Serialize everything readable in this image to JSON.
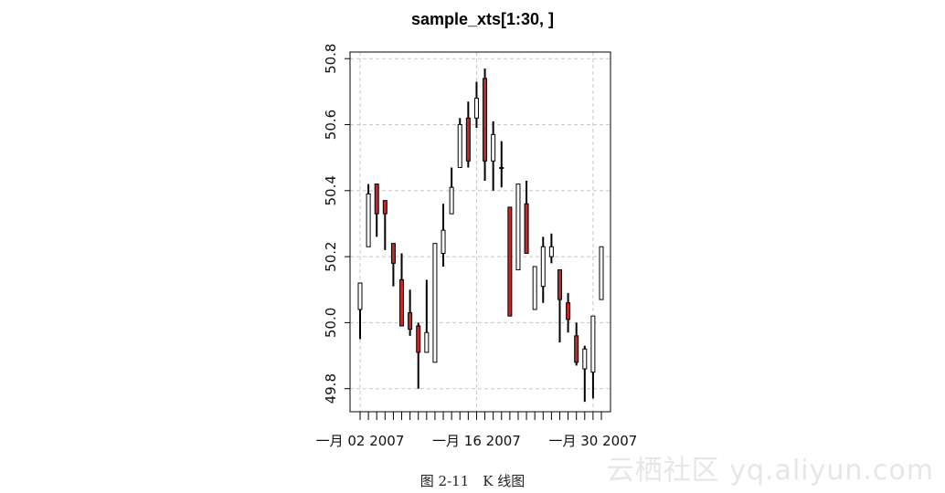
{
  "chart_data": {
    "type": "candlestick",
    "title": "sample_xts[1:30, ]",
    "xlabel": "",
    "ylabel": "",
    "ylim": [
      49.73,
      50.82
    ],
    "y_ticks": [
      49.8,
      50.0,
      50.2,
      50.4,
      50.6,
      50.8
    ],
    "y_tick_labels": [
      "49.8",
      "50.0",
      "50.2",
      "50.4",
      "50.6",
      "50.8"
    ],
    "x_tick_labels": [
      {
        "index": 0,
        "label": "一月 02 2007"
      },
      {
        "index": 14,
        "label": "一月 16 2007"
      },
      {
        "index": 28,
        "label": "一月 30 2007"
      }
    ],
    "grid": true,
    "up_color": "#ffffff",
    "down_color": "#c0282a",
    "candles": [
      {
        "open": 50.04,
        "high": 50.11,
        "low": 49.95,
        "close": 50.12
      },
      {
        "open": 50.23,
        "high": 50.42,
        "low": 50.23,
        "close": 50.39
      },
      {
        "open": 50.42,
        "high": 50.42,
        "low": 50.26,
        "close": 50.33
      },
      {
        "open": 50.37,
        "high": 50.37,
        "low": 50.22,
        "close": 50.33
      },
      {
        "open": 50.24,
        "high": 50.24,
        "low": 50.11,
        "close": 50.18
      },
      {
        "open": 50.13,
        "high": 50.21,
        "low": 49.99,
        "close": 49.99
      },
      {
        "open": 50.03,
        "high": 50.1,
        "low": 49.96,
        "close": 49.98
      },
      {
        "open": 49.99,
        "high": 50.0,
        "low": 49.8,
        "close": 49.91
      },
      {
        "open": 49.91,
        "high": 50.13,
        "low": 49.91,
        "close": 49.97
      },
      {
        "open": 49.88,
        "high": 50.24,
        "low": 49.88,
        "close": 50.24
      },
      {
        "open": 50.21,
        "high": 50.36,
        "low": 50.17,
        "close": 50.28
      },
      {
        "open": 50.33,
        "high": 50.47,
        "low": 50.33,
        "close": 50.41
      },
      {
        "open": 50.47,
        "high": 50.62,
        "low": 50.47,
        "close": 50.6
      },
      {
        "open": 50.62,
        "high": 50.67,
        "low": 50.47,
        "close": 50.49
      },
      {
        "open": 50.62,
        "high": 50.73,
        "low": 50.59,
        "close": 50.68
      },
      {
        "open": 50.74,
        "high": 50.77,
        "low": 50.43,
        "close": 50.49
      },
      {
        "open": 50.49,
        "high": 50.61,
        "low": 50.4,
        "close": 50.57
      },
      {
        "open": 50.47,
        "high": 50.55,
        "low": 50.41,
        "close": 50.47
      },
      {
        "open": 50.35,
        "high": 50.35,
        "low": 50.02,
        "close": 50.02
      },
      {
        "open": 50.16,
        "high": 50.42,
        "low": 50.16,
        "close": 50.42
      },
      {
        "open": 50.36,
        "high": 50.43,
        "low": 50.21,
        "close": 50.21
      },
      {
        "open": 50.04,
        "high": 50.17,
        "low": 50.04,
        "close": 50.17
      },
      {
        "open": 50.11,
        "high": 50.26,
        "low": 50.06,
        "close": 50.23
      },
      {
        "open": 50.2,
        "high": 50.27,
        "low": 50.18,
        "close": 50.23
      },
      {
        "open": 50.16,
        "high": 50.16,
        "low": 49.94,
        "close": 50.07
      },
      {
        "open": 50.06,
        "high": 50.09,
        "low": 49.97,
        "close": 50.01
      },
      {
        "open": 49.96,
        "high": 50.0,
        "low": 49.87,
        "close": 49.88
      },
      {
        "open": 49.86,
        "high": 49.93,
        "low": 49.76,
        "close": 49.92
      },
      {
        "open": 49.85,
        "high": 50.02,
        "low": 49.77,
        "close": 50.02
      },
      {
        "open": 50.07,
        "high": 50.23,
        "low": 50.07,
        "close": 50.23
      }
    ]
  },
  "caption": "图 2-11　K 线图",
  "watermark": "云栖社区 yq.aliyun.com"
}
